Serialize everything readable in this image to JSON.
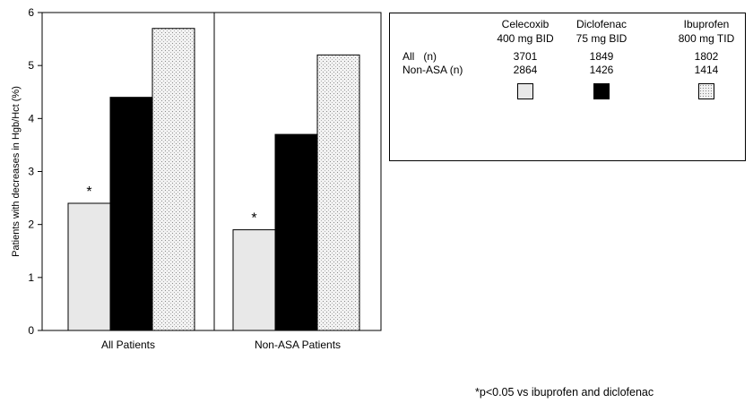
{
  "chart_data": {
    "type": "bar",
    "ylabel": "Patients with decreases in Hgb/Hct (%)",
    "ylim": [
      0,
      6
    ],
    "yticks": [
      "0",
      "1",
      "2",
      "3",
      "4",
      "5",
      "6"
    ],
    "categories": [
      "All Patients",
      "Non-ASA Patients"
    ],
    "series": [
      {
        "name": "Celecoxib 400 mg BID",
        "values": [
          2.4,
          1.9
        ],
        "color": "#e8e8e8",
        "pattern": "solid-light"
      },
      {
        "name": "Diclofenac 75 mg BID",
        "values": [
          4.4,
          3.7
        ],
        "color": "#000000",
        "pattern": "solid-black"
      },
      {
        "name": "Ibuprofen 800 mg TID",
        "values": [
          5.7,
          5.2
        ],
        "color": "#dcdcdc",
        "pattern": "dotted-grid"
      }
    ],
    "annotations": [
      "*",
      "*"
    ]
  },
  "legend": {
    "columns": [
      {
        "drug": "Celecoxib",
        "dose": "400 mg BID",
        "all_n": "3701",
        "nonasa_n": "2864"
      },
      {
        "drug": "Diclofenac",
        "dose": "75 mg BID",
        "all_n": "1849",
        "nonasa_n": "1426"
      },
      {
        "drug": "Ibuprofen",
        "dose": "800 mg TID",
        "all_n": "1802",
        "nonasa_n": "1414"
      }
    ],
    "row_all": "All   (n)",
    "row_nonasa": "Non-ASA (n)"
  },
  "footnote": "*p<0.05 vs ibuprofen and diclofenac"
}
